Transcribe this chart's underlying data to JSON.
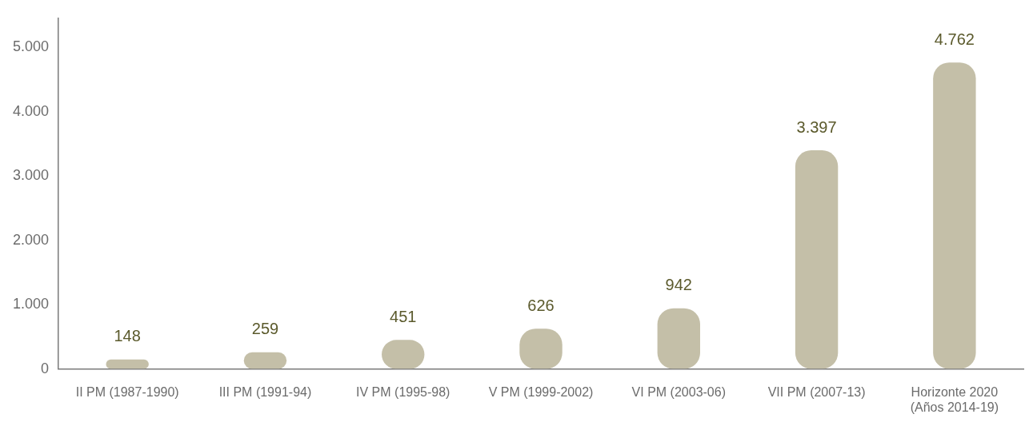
{
  "chart_data": {
    "type": "bar",
    "categories": [
      "II PM (1987-1990)",
      "III PM (1991-94)",
      "IV PM (1995-98)",
      "V PM (1999-2002)",
      "VI PM (2003-06)",
      "VII PM (2007-13)",
      "Horizonte 2020 (Años 2014-19)"
    ],
    "values": [
      148,
      259,
      451,
      626,
      942,
      3397,
      4762
    ],
    "value_labels": [
      "148",
      "259",
      "451",
      "626",
      "942",
      "3.397",
      "4.762"
    ],
    "color": "#c4bfa8",
    "ylim": [
      0,
      5450
    ],
    "yticks": [
      0,
      {
        "value": 1000,
        "label": "1.000"
      },
      {
        "value": 2000,
        "label": "2.000"
      },
      {
        "value": 3000,
        "label": "3.000"
      },
      {
        "value": 4000,
        "label": "4.000"
      },
      {
        "value": 5000,
        "label": "5.000"
      }
    ]
  }
}
